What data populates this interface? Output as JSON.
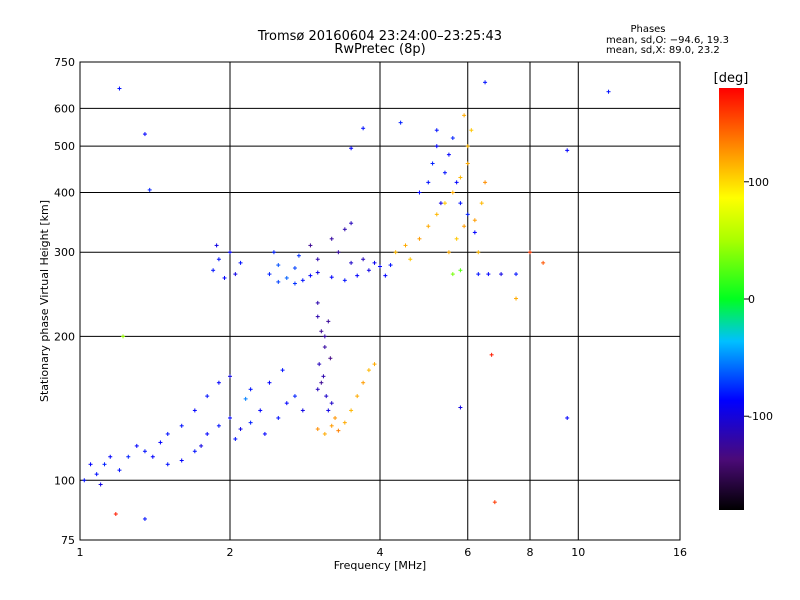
{
  "chart_data": {
    "type": "scatter",
    "title": "Tromsø 20160604 23:24:00–23:25:43",
    "subtitle": "RwPretec (8p)",
    "xlabel": "Frequency [MHz]",
    "ylabel": "Stationary phase Virtual Height [km]",
    "x_scale": "log",
    "y_scale": "log",
    "xlim": [
      1,
      16
    ],
    "ylim": [
      75,
      750
    ],
    "x_ticks": [
      1,
      2,
      4,
      6,
      8,
      10,
      16
    ],
    "x_tick_labels": [
      "1",
      "2",
      "4",
      "6",
      "8",
      "10",
      "16"
    ],
    "y_ticks": [
      75,
      100,
      200,
      300,
      400,
      500,
      600,
      750
    ],
    "y_tick_labels": [
      "75",
      "100",
      "200",
      "300",
      "400",
      "500",
      "600",
      "750"
    ],
    "grid": true,
    "stats": {
      "heading": "Phases",
      "line1": "mean, sd,O: −94.6, 19.3",
      "line2": "mean, sd,X:  89.0, 23.2"
    },
    "colorbar": {
      "label": "[deg]",
      "range": [
        -180,
        180
      ],
      "ticks": [
        100,
        0,
        -100
      ],
      "tick_labels": [
        "100",
        "0",
        "-100"
      ]
    },
    "series": [
      {
        "points": [
          [
            1.02,
            100,
            -95
          ],
          [
            1.05,
            108,
            -100
          ],
          [
            1.08,
            103,
            -95
          ],
          [
            1.1,
            98,
            -110
          ],
          [
            1.12,
            108,
            -90
          ],
          [
            1.15,
            112,
            -100
          ],
          [
            1.2,
            105,
            -95
          ],
          [
            1.25,
            112,
            -90
          ],
          [
            1.3,
            118,
            -100
          ],
          [
            1.35,
            115,
            -95
          ],
          [
            1.4,
            112,
            -100
          ],
          [
            1.5,
            108,
            -95
          ],
          [
            1.6,
            110,
            -100
          ],
          [
            1.7,
            115,
            -95
          ],
          [
            1.8,
            125,
            -100
          ],
          [
            1.9,
            130,
            -95
          ],
          [
            2.0,
            135,
            -100
          ],
          [
            2.1,
            128,
            -110
          ],
          [
            2.2,
            132,
            -90
          ],
          [
            2.3,
            140,
            -100
          ],
          [
            2.5,
            135,
            -95
          ],
          [
            2.6,
            145,
            -100
          ],
          [
            2.7,
            150,
            -90
          ],
          [
            2.8,
            140,
            -110
          ],
          [
            1.6,
            130,
            -95
          ],
          [
            1.7,
            140,
            -100
          ],
          [
            1.8,
            150,
            -95
          ],
          [
            1.9,
            160,
            -100
          ],
          [
            2.0,
            165,
            -110
          ],
          [
            2.2,
            155,
            -95
          ],
          [
            2.4,
            160,
            -100
          ],
          [
            1.5,
            125,
            -95
          ],
          [
            1.45,
            120,
            -100
          ],
          [
            1.75,
            118,
            -110
          ],
          [
            2.05,
            122,
            -95
          ],
          [
            2.15,
            148,
            -60
          ],
          [
            2.35,
            125,
            -100
          ],
          [
            2.55,
            170,
            -95
          ]
        ]
      },
      {
        "points": [
          [
            1.85,
            275,
            -95
          ],
          [
            1.95,
            265,
            -100
          ],
          [
            2.05,
            270,
            -110
          ],
          [
            1.9,
            290,
            -95
          ],
          [
            2.0,
            300,
            -100
          ],
          [
            2.1,
            285,
            -95
          ],
          [
            1.88,
            310,
            -110
          ],
          [
            2.4,
            270,
            -90
          ],
          [
            2.5,
            260,
            -80
          ],
          [
            2.6,
            265,
            -70
          ],
          [
            2.7,
            258,
            -85
          ],
          [
            2.8,
            262,
            -95
          ],
          [
            2.9,
            268,
            -100
          ],
          [
            3.0,
            272,
            -110
          ],
          [
            3.2,
            266,
            -100
          ],
          [
            3.4,
            262,
            -95
          ],
          [
            3.6,
            268,
            -100
          ],
          [
            3.8,
            275,
            -110
          ],
          [
            4.0,
            280,
            -100
          ],
          [
            4.2,
            282,
            -95
          ],
          [
            2.5,
            282,
            -75
          ],
          [
            2.7,
            278,
            -80
          ],
          [
            3.0,
            290,
            -130
          ],
          [
            3.3,
            300,
            -135
          ],
          [
            3.5,
            285,
            -120
          ],
          [
            3.7,
            290,
            -125
          ],
          [
            2.9,
            310,
            -140
          ],
          [
            3.2,
            320,
            -135
          ],
          [
            3.4,
            335,
            -130
          ],
          [
            3.5,
            345,
            -125
          ],
          [
            2.45,
            300,
            -90
          ],
          [
            2.75,
            295,
            -85
          ],
          [
            3.9,
            285,
            -105
          ],
          [
            4.1,
            268,
            -100
          ]
        ]
      },
      {
        "points": [
          [
            3.0,
            220,
            -130
          ],
          [
            3.05,
            205,
            -140
          ],
          [
            3.1,
            190,
            -135
          ],
          [
            3.02,
            175,
            -125
          ],
          [
            3.08,
            165,
            -130
          ],
          [
            3.12,
            150,
            -120
          ],
          [
            3.15,
            140,
            -110
          ],
          [
            3.05,
            160,
            -140
          ],
          [
            3.18,
            180,
            -145
          ],
          [
            3.1,
            200,
            -135
          ],
          [
            3.0,
            155,
            -125
          ],
          [
            3.2,
            145,
            -120
          ],
          [
            3.0,
            235,
            -130
          ],
          [
            3.15,
            215,
            -138
          ]
        ]
      },
      {
        "points": [
          [
            3.0,
            128,
            130
          ],
          [
            3.1,
            125,
            120
          ],
          [
            3.2,
            130,
            125
          ],
          [
            3.3,
            127,
            135
          ],
          [
            3.4,
            132,
            120
          ],
          [
            3.5,
            140,
            115
          ],
          [
            3.6,
            150,
            120
          ],
          [
            3.7,
            160,
            125
          ],
          [
            3.8,
            170,
            115
          ],
          [
            3.9,
            175,
            120
          ],
          [
            3.25,
            135,
            128
          ]
        ]
      },
      {
        "points": [
          [
            4.3,
            300,
            115
          ],
          [
            4.5,
            310,
            120
          ],
          [
            4.6,
            290,
            110
          ],
          [
            4.8,
            320,
            125
          ],
          [
            5.0,
            340,
            120
          ],
          [
            5.2,
            360,
            115
          ],
          [
            5.4,
            380,
            110
          ],
          [
            5.6,
            400,
            120
          ],
          [
            5.8,
            430,
            115
          ],
          [
            6.0,
            460,
            120
          ],
          [
            6.0,
            500,
            115
          ],
          [
            6.1,
            540,
            110
          ],
          [
            5.9,
            580,
            120
          ],
          [
            6.2,
            350,
            125
          ],
          [
            6.4,
            380,
            115
          ],
          [
            6.5,
            420,
            130
          ],
          [
            5.5,
            300,
            120
          ],
          [
            5.7,
            320,
            110
          ],
          [
            5.9,
            340,
            125
          ],
          [
            6.3,
            300,
            115
          ],
          [
            5.6,
            270,
            35
          ],
          [
            5.8,
            275,
            25
          ]
        ]
      },
      {
        "points": [
          [
            4.8,
            400,
            -100
          ],
          [
            5.0,
            420,
            -95
          ],
          [
            5.1,
            460,
            -90
          ],
          [
            5.2,
            500,
            -100
          ],
          [
            5.3,
            380,
            -110
          ],
          [
            5.4,
            440,
            -95
          ],
          [
            5.5,
            480,
            -100
          ],
          [
            5.6,
            520,
            -90
          ],
          [
            5.2,
            540,
            -95
          ],
          [
            5.7,
            420,
            -100
          ],
          [
            5.8,
            380,
            -95
          ],
          [
            6.0,
            360,
            -90
          ],
          [
            6.2,
            330,
            -100
          ],
          [
            6.3,
            270,
            -95
          ],
          [
            6.6,
            270,
            -100
          ],
          [
            7.0,
            270,
            -110
          ],
          [
            7.5,
            270,
            -95
          ]
        ]
      },
      {
        "points": [
          [
            1.2,
            660,
            -95
          ],
          [
            1.35,
            530,
            -100
          ],
          [
            1.38,
            405,
            -90
          ],
          [
            1.22,
            200,
            45
          ],
          [
            1.35,
            83,
            -95
          ],
          [
            1.18,
            85,
            170
          ],
          [
            3.5,
            495,
            -100
          ],
          [
            3.7,
            545,
            -95
          ],
          [
            4.4,
            560,
            -90
          ],
          [
            6.5,
            680,
            -95
          ],
          [
            9.5,
            490,
            -100
          ],
          [
            11.5,
            650,
            -95
          ],
          [
            9.5,
            135,
            -100
          ],
          [
            5.8,
            142,
            -110
          ],
          [
            6.8,
            90,
            160
          ],
          [
            6.7,
            183,
            170
          ],
          [
            8.0,
            300,
            160
          ],
          [
            8.5,
            285,
            150
          ],
          [
            7.5,
            240,
            120
          ]
        ]
      }
    ]
  }
}
